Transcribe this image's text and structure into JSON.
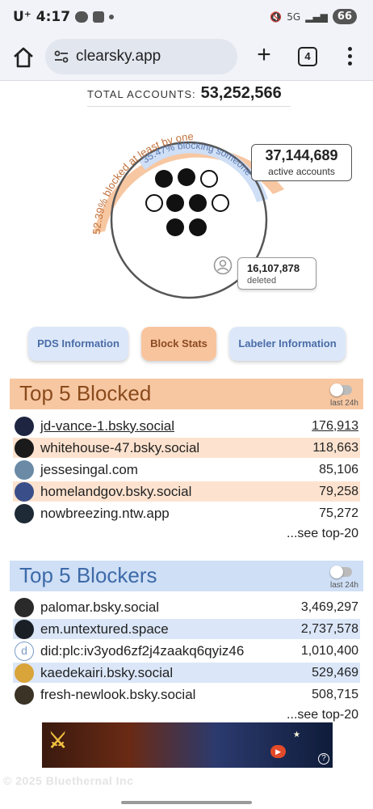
{
  "status_bar": {
    "carrier": "U⁺",
    "time": "4:17",
    "signal": "5G",
    "battery": "66"
  },
  "browser": {
    "url": "clearsky.app",
    "tab_count": "4",
    "icons": [
      "home-icon",
      "tune-icon",
      "plus-icon",
      "tabs-icon",
      "more-icon"
    ]
  },
  "totals": {
    "label": "TOTAL ACCOUNTS:",
    "value": "53,252,566"
  },
  "gauge": {
    "blocked_pct_label": "52.39% blocked at least by one",
    "blocking_pct_label": "35.47% blocking someone",
    "blocked_fraction": 0.5239,
    "blocking_fraction": 0.3547,
    "active_value": "37,144,689",
    "active_label": "active accounts",
    "deleted_value": "16,107,878",
    "deleted_label": "deleted",
    "colors": {
      "blocked": "#f7c7a2",
      "blocking": "#cfdff6",
      "ring": "#555555"
    }
  },
  "buttons": {
    "pds": "PDS Information",
    "block_stats": "Block Stats",
    "labeler": "Labeler Information"
  },
  "top_blocked": {
    "title": "Top 5 Blocked",
    "toggle_label": "last 24h",
    "see_more": "...see top-20",
    "rows": [
      {
        "handle": "jd-vance-1.bsky.social",
        "count": "176,913"
      },
      {
        "handle": "whitehouse-47.bsky.social",
        "count": "118,663"
      },
      {
        "handle": "jessesingal.com",
        "count": "85,106"
      },
      {
        "handle": "homelandgov.bsky.social",
        "count": "79,258"
      },
      {
        "handle": "nowbreezing.ntw.app",
        "count": "75,272"
      }
    ]
  },
  "top_blockers": {
    "title": "Top 5 Blockers",
    "toggle_label": "last 24h",
    "see_more": "...see top-20",
    "rows": [
      {
        "handle": "palomar.bsky.social",
        "count": "3,469,297"
      },
      {
        "handle": "em.untextured.space",
        "count": "2,737,578"
      },
      {
        "handle": "did:plc:iv3yod6zf2j4zaakq6qyiz46",
        "count": "1,010,400"
      },
      {
        "handle": "kaedekairi.bsky.social",
        "count": "529,469"
      },
      {
        "handle": "fresh-newlook.bsky.social",
        "count": "508,715"
      }
    ]
  },
  "footer": {
    "text": "© 2025 Bluethernal Inc"
  }
}
